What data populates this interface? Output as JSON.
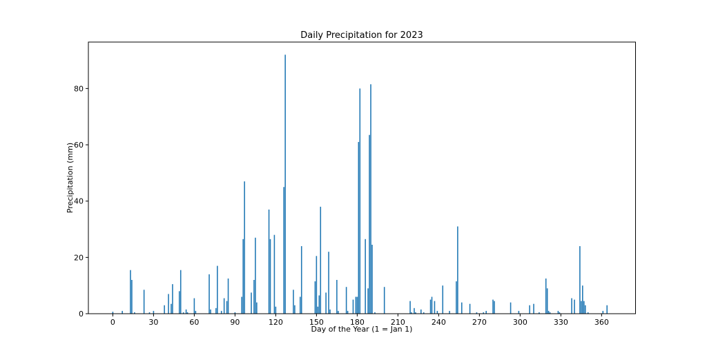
{
  "chart_data": {
    "type": "bar",
    "title": "Daily Precipitation for 2023",
    "xlabel": "Day of the Year (1 = Jan 1)",
    "ylabel": "Precipitation (mm)",
    "xlim": [
      -18,
      385
    ],
    "ylim": [
      0,
      96.5
    ],
    "xticks": [
      0,
      30,
      60,
      90,
      120,
      150,
      180,
      210,
      240,
      270,
      300,
      330,
      360
    ],
    "yticks": [
      0,
      20,
      40,
      60,
      80
    ],
    "bar_color": "#1f77b4",
    "grid": false,
    "bars": [
      {
        "x": 0,
        "y": 0.7
      },
      {
        "x": 7,
        "y": 1.0
      },
      {
        "x": 13,
        "y": 15.5
      },
      {
        "x": 14,
        "y": 12.0
      },
      {
        "x": 16,
        "y": 0.5
      },
      {
        "x": 23,
        "y": 8.5
      },
      {
        "x": 27,
        "y": 0.5
      },
      {
        "x": 30,
        "y": 1.0
      },
      {
        "x": 38,
        "y": 3.0
      },
      {
        "x": 41,
        "y": 7.0
      },
      {
        "x": 43,
        "y": 3.5
      },
      {
        "x": 44,
        "y": 10.5
      },
      {
        "x": 49,
        "y": 8.0
      },
      {
        "x": 50,
        "y": 15.5
      },
      {
        "x": 52,
        "y": 0.5
      },
      {
        "x": 54,
        "y": 1.5
      },
      {
        "x": 55,
        "y": 0.5
      },
      {
        "x": 60,
        "y": 5.5
      },
      {
        "x": 61,
        "y": 1.0
      },
      {
        "x": 71,
        "y": 14.0
      },
      {
        "x": 72,
        "y": 1.5
      },
      {
        "x": 76,
        "y": 2.0
      },
      {
        "x": 77,
        "y": 17.0
      },
      {
        "x": 80,
        "y": 1.0
      },
      {
        "x": 82,
        "y": 5.5
      },
      {
        "x": 84,
        "y": 4.5
      },
      {
        "x": 85,
        "y": 12.5
      },
      {
        "x": 90,
        "y": 0.5
      },
      {
        "x": 95,
        "y": 6.0
      },
      {
        "x": 96,
        "y": 26.5
      },
      {
        "x": 97,
        "y": 47.0
      },
      {
        "x": 102,
        "y": 7.5
      },
      {
        "x": 104,
        "y": 12.0
      },
      {
        "x": 105,
        "y": 27.0
      },
      {
        "x": 106,
        "y": 4.0
      },
      {
        "x": 115,
        "y": 37.0
      },
      {
        "x": 116,
        "y": 26.5
      },
      {
        "x": 119,
        "y": 28.0
      },
      {
        "x": 120,
        "y": 2.5
      },
      {
        "x": 126,
        "y": 45.0
      },
      {
        "x": 127,
        "y": 92.0
      },
      {
        "x": 133,
        "y": 8.5
      },
      {
        "x": 134,
        "y": 3.0
      },
      {
        "x": 138,
        "y": 6.0
      },
      {
        "x": 139,
        "y": 24.0
      },
      {
        "x": 149,
        "y": 11.5
      },
      {
        "x": 150,
        "y": 20.5
      },
      {
        "x": 151,
        "y": 2.5
      },
      {
        "x": 152,
        "y": 6.5
      },
      {
        "x": 153,
        "y": 38.0
      },
      {
        "x": 157,
        "y": 7.5
      },
      {
        "x": 159,
        "y": 22.0
      },
      {
        "x": 160,
        "y": 1.5
      },
      {
        "x": 165,
        "y": 12.0
      },
      {
        "x": 166,
        "y": 1.0
      },
      {
        "x": 172,
        "y": 9.5
      },
      {
        "x": 173,
        "y": 1.0
      },
      {
        "x": 177,
        "y": 5.0
      },
      {
        "x": 179,
        "y": 6.0
      },
      {
        "x": 180,
        "y": 6.0
      },
      {
        "x": 181,
        "y": 61.0
      },
      {
        "x": 182,
        "y": 80.0
      },
      {
        "x": 186,
        "y": 26.5
      },
      {
        "x": 188,
        "y": 9.0
      },
      {
        "x": 189,
        "y": 63.5
      },
      {
        "x": 190,
        "y": 81.5
      },
      {
        "x": 191,
        "y": 24.5
      },
      {
        "x": 193,
        "y": 0.5
      },
      {
        "x": 200,
        "y": 9.5
      },
      {
        "x": 219,
        "y": 4.5
      },
      {
        "x": 220,
        "y": 0.5
      },
      {
        "x": 222,
        "y": 2.0
      },
      {
        "x": 223,
        "y": 0.5
      },
      {
        "x": 227,
        "y": 1.5
      },
      {
        "x": 229,
        "y": 0.5
      },
      {
        "x": 234,
        "y": 5.0
      },
      {
        "x": 235,
        "y": 6.0
      },
      {
        "x": 237,
        "y": 4.5
      },
      {
        "x": 239,
        "y": 1.0
      },
      {
        "x": 243,
        "y": 10.0
      },
      {
        "x": 248,
        "y": 1.0
      },
      {
        "x": 253,
        "y": 11.5
      },
      {
        "x": 254,
        "y": 31.0
      },
      {
        "x": 257,
        "y": 4.0
      },
      {
        "x": 263,
        "y": 3.5
      },
      {
        "x": 268,
        "y": 0.5
      },
      {
        "x": 273,
        "y": 0.5
      },
      {
        "x": 275,
        "y": 1.0
      },
      {
        "x": 280,
        "y": 5.0
      },
      {
        "x": 281,
        "y": 4.5
      },
      {
        "x": 293,
        "y": 4.0
      },
      {
        "x": 299,
        "y": 1.0
      },
      {
        "x": 307,
        "y": 3.0
      },
      {
        "x": 310,
        "y": 3.5
      },
      {
        "x": 314,
        "y": 0.5
      },
      {
        "x": 319,
        "y": 12.5
      },
      {
        "x": 320,
        "y": 9.0
      },
      {
        "x": 321,
        "y": 1.0
      },
      {
        "x": 322,
        "y": 0.5
      },
      {
        "x": 328,
        "y": 1.0
      },
      {
        "x": 329,
        "y": 0.5
      },
      {
        "x": 338,
        "y": 5.5
      },
      {
        "x": 340,
        "y": 5.0
      },
      {
        "x": 344,
        "y": 24.0
      },
      {
        "x": 345,
        "y": 4.5
      },
      {
        "x": 346,
        "y": 10.0
      },
      {
        "x": 347,
        "y": 4.5
      },
      {
        "x": 348,
        "y": 3.0
      },
      {
        "x": 350,
        "y": 0.5
      },
      {
        "x": 361,
        "y": 1.0
      },
      {
        "x": 364,
        "y": 3.0
      }
    ]
  }
}
